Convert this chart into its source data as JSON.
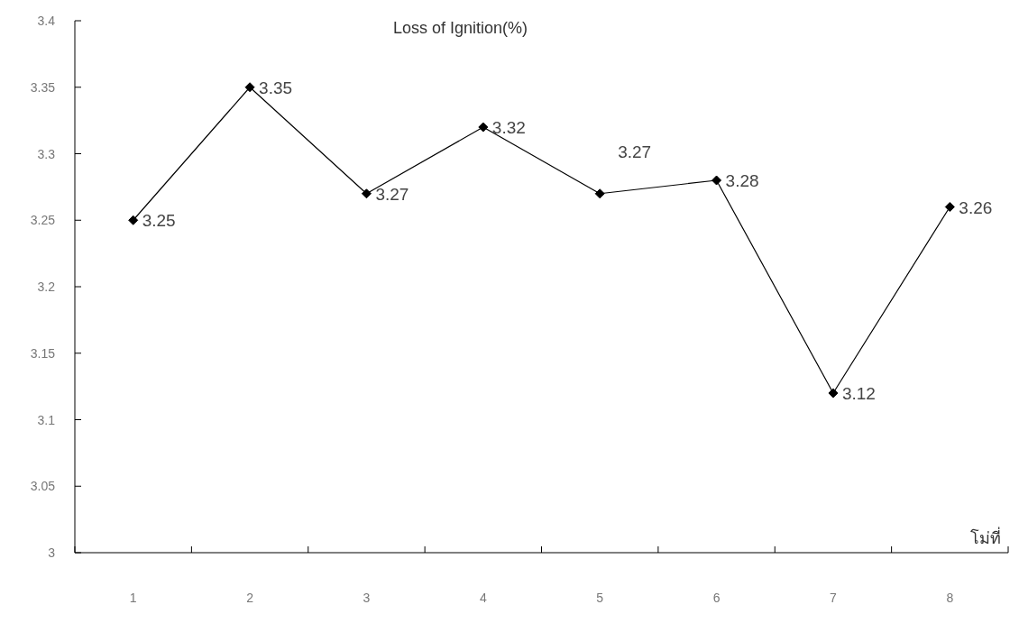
{
  "chart_data": {
    "type": "line",
    "title": "Loss of Ignition(%)",
    "xlabel": "โม่ที่",
    "categories": [
      "1",
      "2",
      "3",
      "4",
      "5",
      "6",
      "7",
      "8"
    ],
    "series": [
      {
        "color": "#000000",
        "values": [
          3.25,
          3.35,
          3.27,
          3.32,
          3.27,
          3.28,
          3.12,
          3.26
        ]
      }
    ],
    "ylim": [
      3,
      3.4
    ],
    "yticks": [
      3,
      3.05,
      3.1,
      3.15,
      3.2,
      3.25,
      3.3,
      3.35,
      3.4
    ],
    "data_labels": true,
    "marker": "diamond",
    "line_style": "solid"
  }
}
